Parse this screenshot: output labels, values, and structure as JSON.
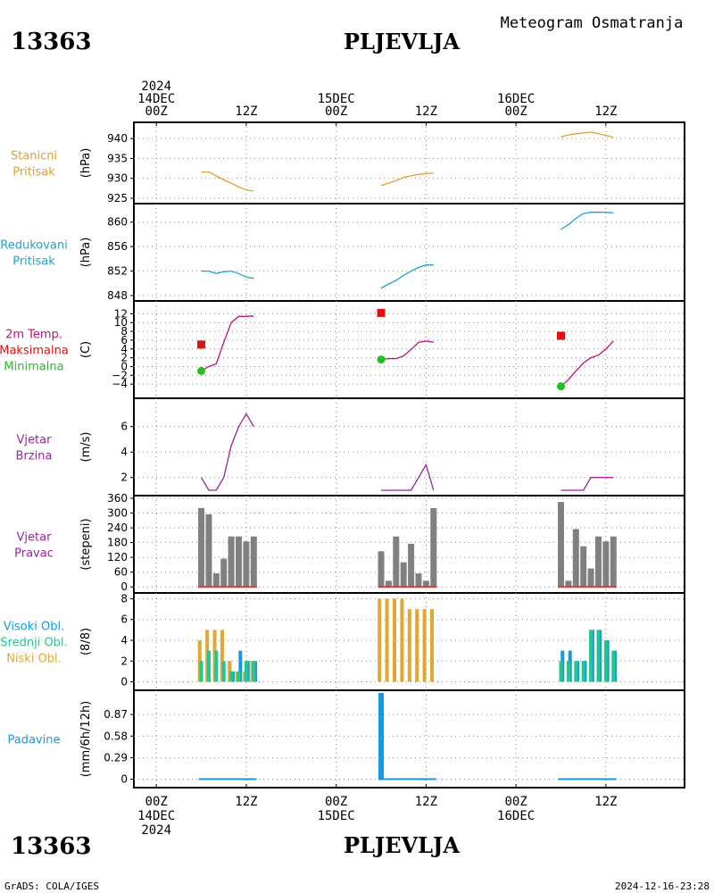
{
  "header": {
    "station_id": "13363",
    "station_name": "PLJEVLJA",
    "product": "Meteogram Osmatranja",
    "footer_left": "GrADS: COLA/IGES",
    "footer_right": "2024-12-16-23:28"
  },
  "time_axis": {
    "top": [
      {
        "t": 0,
        "lines": [
          "2024",
          "14DEC",
          "00Z"
        ]
      },
      {
        "t": 12,
        "lines": [
          "12Z"
        ]
      },
      {
        "t": 24,
        "lines": [
          "15DEC",
          "00Z"
        ]
      },
      {
        "t": 36,
        "lines": [
          "12Z"
        ]
      },
      {
        "t": 48,
        "lines": [
          "16DEC",
          "00Z"
        ]
      },
      {
        "t": 60,
        "lines": [
          "12Z"
        ]
      }
    ],
    "bottom": [
      {
        "t": 0,
        "lines": [
          "00Z",
          "14DEC",
          "2024"
        ]
      },
      {
        "t": 12,
        "lines": [
          "12Z"
        ]
      },
      {
        "t": 24,
        "lines": [
          "00Z",
          "15DEC"
        ]
      },
      {
        "t": 36,
        "lines": [
          "12Z"
        ]
      },
      {
        "t": 48,
        "lines": [
          "00Z",
          "16DEC"
        ]
      },
      {
        "t": 60,
        "lines": [
          "12Z"
        ]
      }
    ],
    "range_hours": [
      -3,
      70.5
    ],
    "gridlines_hours": [
      0,
      12,
      24,
      36,
      48,
      60
    ]
  },
  "colors": {
    "pressure_station": "#e0a030",
    "pressure_reduced": "#20a0d0",
    "temp": "#c0107a",
    "max_marker": "#e01010",
    "min_marker": "#20c020",
    "wind": "#a020a0",
    "wind_dir_bar": "#808080",
    "wind_dir_base": "#d04040",
    "cloud_high": "#1898e0",
    "cloud_mid": "#20c890",
    "cloud_low": "#e0a830",
    "precip": "#1898e0"
  },
  "chart_data": [
    {
      "type": "line",
      "id": "station_pressure",
      "label_lines": [
        "Stanicni",
        "Pritisak"
      ],
      "label_colors": [
        "#e0a030",
        "#e0a030"
      ],
      "unit": "(hPa)",
      "ylim": [
        925,
        942.5
      ],
      "yticks": [
        925,
        930,
        935,
        940
      ],
      "series": [
        {
          "color": "#e0a030",
          "x": [
            6,
            7,
            8,
            9,
            10,
            11,
            12,
            13
          ],
          "y": [
            931.6,
            931.6,
            930.6,
            929.6,
            928.8,
            927.8,
            927.1,
            926.8
          ]
        },
        {
          "color": "#e0a030",
          "x": [
            30,
            31,
            32,
            33,
            34,
            35,
            36,
            37
          ],
          "y": [
            928.2,
            928.8,
            929.4,
            930.2,
            930.6,
            931.0,
            931.2,
            931.3
          ]
        },
        {
          "color": "#e0a030",
          "x": [
            54,
            55,
            56,
            57,
            58,
            59,
            60,
            61
          ],
          "y": [
            940.4,
            940.9,
            941.2,
            941.4,
            941.6,
            941.2,
            940.8,
            940.3
          ]
        }
      ]
    },
    {
      "type": "line",
      "id": "reduced_pressure",
      "label_lines": [
        "Redukovani",
        "Pritisak"
      ],
      "label_colors": [
        "#20a0d0",
        "#20a0d0"
      ],
      "unit": "(hPa)",
      "ylim": [
        848,
        862
      ],
      "yticks": [
        848,
        852,
        856,
        860
      ],
      "series": [
        {
          "color": "#20a0d0",
          "x": [
            6,
            7,
            8,
            9,
            10,
            11,
            12,
            13
          ],
          "y": [
            852.0,
            852.0,
            851.6,
            851.9,
            852.0,
            851.6,
            851.0,
            850.8
          ]
        },
        {
          "color": "#20a0d0",
          "x": [
            30,
            31,
            32,
            33,
            34,
            35,
            36,
            37
          ],
          "y": [
            849.2,
            849.9,
            850.5,
            851.3,
            852.0,
            852.6,
            853.0,
            853.0
          ]
        },
        {
          "color": "#20a0d0",
          "x": [
            54,
            55,
            56,
            57,
            58,
            59,
            60,
            61
          ],
          "y": [
            858.8,
            859.6,
            860.6,
            861.4,
            861.6,
            861.6,
            861.6,
            861.5
          ]
        }
      ]
    },
    {
      "type": "line",
      "id": "temperature",
      "label_lines": [
        "2m Temp.",
        "Maksimalna",
        "Minimalna"
      ],
      "label_colors": [
        "#c0107a",
        "#e01010",
        "#20c020"
      ],
      "unit": "(C)",
      "ylim": [
        -6,
        13.5
      ],
      "yticks": [
        -4,
        -2,
        0,
        2,
        4,
        6,
        8,
        10,
        12
      ],
      "ytick_labels": [
        "−4",
        "−2",
        "0",
        "2",
        "4",
        "6",
        "8",
        "10",
        "12"
      ],
      "series": [
        {
          "color": "#c0107a",
          "x": [
            6,
            7,
            8,
            9,
            10,
            11,
            12,
            13
          ],
          "y": [
            -1.0,
            0.0,
            0.6,
            5.5,
            10.0,
            11.4,
            11.4,
            11.5
          ]
        },
        {
          "color": "#c0107a",
          "x": [
            30,
            31,
            32,
            33,
            34,
            35,
            36,
            37
          ],
          "y": [
            1.6,
            1.8,
            1.8,
            2.4,
            3.9,
            5.5,
            5.8,
            5.5
          ]
        },
        {
          "color": "#c0107a",
          "x": [
            54,
            55,
            56,
            57,
            58,
            59,
            60,
            61
          ],
          "y": [
            -4.5,
            -3.0,
            -1.0,
            0.8,
            2.0,
            2.6,
            4.0,
            5.8
          ]
        }
      ],
      "markers": [
        {
          "kind": "max",
          "x": 6,
          "y": 5.0
        },
        {
          "kind": "max",
          "x": 30,
          "y": 12.2
        },
        {
          "kind": "max",
          "x": 54,
          "y": 7.0
        },
        {
          "kind": "min",
          "x": 6,
          "y": -1.0
        },
        {
          "kind": "min",
          "x": 30,
          "y": 1.6
        },
        {
          "kind": "min",
          "x": 54,
          "y": -4.5
        }
      ]
    },
    {
      "type": "line",
      "id": "wind_speed",
      "label_lines": [
        "Vjetar",
        "Brzina"
      ],
      "label_colors": [
        "#a020a0",
        "#a020a0"
      ],
      "unit": "(m/s)",
      "ylim": [
        1,
        7.8
      ],
      "yticks": [
        2,
        4,
        6
      ],
      "series": [
        {
          "color": "#a020a0",
          "x": [
            6,
            7,
            8,
            9,
            10,
            11,
            12,
            13
          ],
          "y": [
            2,
            1,
            1,
            2,
            4.5,
            6,
            7,
            6
          ]
        },
        {
          "color": "#a020a0",
          "x": [
            30,
            31,
            32,
            33,
            34,
            35,
            36,
            37
          ],
          "y": [
            1,
            1,
            1,
            1,
            1,
            2,
            3,
            1
          ]
        },
        {
          "color": "#a020a0",
          "x": [
            54,
            55,
            56,
            57,
            58,
            59,
            60,
            61
          ],
          "y": [
            1,
            1,
            1,
            1,
            2,
            2,
            2,
            2
          ]
        }
      ]
    },
    {
      "type": "bar",
      "id": "wind_direction",
      "label_lines": [
        "Vjetar",
        "Pravac"
      ],
      "label_colors": [
        "#a020a0",
        "#a020a0"
      ],
      "unit": "(stepeni)",
      "ylim": [
        -10,
        360
      ],
      "yticks": [
        0,
        60,
        120,
        180,
        240,
        300,
        360
      ],
      "bar_color": "#808080",
      "x": [
        6,
        7,
        8,
        9,
        10,
        11,
        12,
        13,
        30,
        31,
        32,
        33,
        34,
        35,
        36,
        37,
        54,
        55,
        56,
        57,
        58,
        59,
        60,
        61
      ],
      "values": [
        320,
        295,
        55,
        115,
        205,
        205,
        185,
        205,
        145,
        25,
        205,
        100,
        175,
        55,
        25,
        320,
        345,
        25,
        235,
        165,
        75,
        205,
        185,
        205
      ]
    },
    {
      "type": "bar",
      "id": "cloud_cover",
      "label_lines": [
        "Visoki Obl.",
        "Srednji Obl.",
        "Niski Obl."
      ],
      "label_colors": [
        "#1898e0",
        "#20c890",
        "#e0a830"
      ],
      "unit": "(8/8)",
      "ylim": [
        -0.3,
        8.3
      ],
      "yticks": [
        0,
        2,
        4,
        6,
        8
      ],
      "x": [
        6,
        7,
        8,
        9,
        10,
        11,
        12,
        13,
        30,
        31,
        32,
        33,
        34,
        35,
        36,
        37,
        54,
        55,
        56,
        57,
        58,
        59,
        60,
        61
      ],
      "series": [
        {
          "name": "Visoki Obl.",
          "color": "#1898e0",
          "values": [
            0,
            0,
            0,
            0,
            1,
            3,
            2,
            2,
            0,
            0,
            0,
            0,
            0,
            0,
            0,
            0,
            3,
            3,
            2,
            2,
            5,
            5,
            4,
            3
          ]
        },
        {
          "name": "Srednji Obl.",
          "color": "#20c890",
          "values": [
            2,
            3,
            3,
            2,
            1,
            1,
            2,
            2,
            0,
            0,
            0,
            0,
            0,
            0,
            0,
            0,
            2,
            2,
            2,
            2,
            5,
            5,
            4,
            3
          ]
        },
        {
          "name": "Niski Obl.",
          "color": "#e0a830",
          "values": [
            4,
            5,
            5,
            5,
            2,
            1,
            1,
            2,
            8,
            8,
            8,
            8,
            7,
            7,
            7,
            7,
            0,
            0,
            0,
            0,
            0,
            0,
            0,
            0
          ]
        }
      ]
    },
    {
      "type": "bar",
      "id": "precipitation",
      "label_lines": [
        "Padavine"
      ],
      "label_colors": [
        "#1898e0"
      ],
      "unit": "(mm/6h/12h)",
      "ylim": [
        -0.03,
        1.16
      ],
      "yticks": [
        0,
        0.29,
        0.58,
        0.87
      ],
      "ytick_labels": [
        "0",
        "0.29",
        "0.58",
        "0.87"
      ],
      "bar_color": "#1898e0",
      "x": [
        6,
        7,
        8,
        9,
        10,
        11,
        12,
        13,
        30,
        31,
        32,
        33,
        34,
        35,
        36,
        37,
        54,
        55,
        56,
        57,
        58,
        59,
        60,
        61
      ],
      "values": [
        0,
        0,
        0,
        0,
        0,
        0,
        0,
        0,
        1.16,
        0,
        0,
        0,
        0,
        0,
        0,
        0,
        0,
        0,
        0,
        0,
        0,
        0,
        0,
        0
      ]
    }
  ]
}
